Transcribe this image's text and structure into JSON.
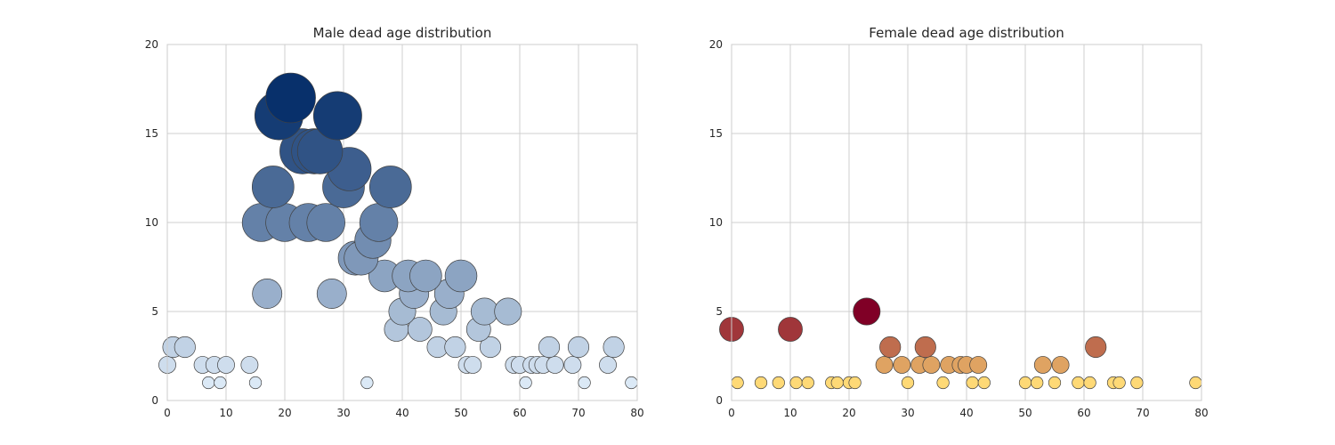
{
  "chart_data": [
    {
      "type": "scatter",
      "title": "Male dead age distribution",
      "xlabel": "",
      "ylabel": "",
      "xlim": [
        0,
        80
      ],
      "ylim": [
        0,
        20
      ],
      "xticks": [
        0,
        10,
        20,
        30,
        40,
        50,
        60,
        70,
        80
      ],
      "yticks": [
        0,
        5,
        10,
        15,
        20
      ],
      "grid": true,
      "colormap": "Blues",
      "color_low": "#dbe9f6",
      "color_high": "#08306b",
      "points": [
        [
          0,
          2
        ],
        [
          1,
          3
        ],
        [
          3,
          3
        ],
        [
          6,
          2
        ],
        [
          7,
          1
        ],
        [
          8,
          2
        ],
        [
          9,
          1
        ],
        [
          10,
          2
        ],
        [
          14,
          2
        ],
        [
          15,
          1
        ],
        [
          16,
          10
        ],
        [
          17,
          6
        ],
        [
          18,
          12
        ],
        [
          19,
          16
        ],
        [
          20,
          10
        ],
        [
          21,
          17
        ],
        [
          23,
          14
        ],
        [
          24,
          10
        ],
        [
          25,
          14
        ],
        [
          26,
          14
        ],
        [
          27,
          10
        ],
        [
          28,
          6
        ],
        [
          29,
          16
        ],
        [
          30,
          12
        ],
        [
          31,
          13
        ],
        [
          32,
          8
        ],
        [
          33,
          8
        ],
        [
          34,
          1
        ],
        [
          35,
          9
        ],
        [
          36,
          10
        ],
        [
          37,
          7
        ],
        [
          38,
          12
        ],
        [
          39,
          4
        ],
        [
          40,
          5
        ],
        [
          41,
          7
        ],
        [
          42,
          6
        ],
        [
          43,
          4
        ],
        [
          44,
          7
        ],
        [
          46,
          3
        ],
        [
          47,
          5
        ],
        [
          48,
          6
        ],
        [
          49,
          3
        ],
        [
          50,
          7
        ],
        [
          51,
          2
        ],
        [
          52,
          2
        ],
        [
          53,
          4
        ],
        [
          54,
          5
        ],
        [
          55,
          3
        ],
        [
          58,
          5
        ],
        [
          59,
          2
        ],
        [
          60,
          2
        ],
        [
          61,
          1
        ],
        [
          62,
          2
        ],
        [
          63,
          2
        ],
        [
          64,
          2
        ],
        [
          65,
          3
        ],
        [
          66,
          2
        ],
        [
          69,
          2
        ],
        [
          70,
          3
        ],
        [
          71,
          1
        ],
        [
          75,
          2
        ],
        [
          76,
          3
        ],
        [
          79,
          1
        ]
      ]
    },
    {
      "type": "scatter",
      "title": "Female dead age distribution",
      "xlabel": "",
      "ylabel": "",
      "xlim": [
        0,
        80
      ],
      "ylim": [
        0,
        20
      ],
      "xticks": [
        0,
        10,
        20,
        30,
        40,
        50,
        60,
        70,
        80
      ],
      "yticks": [
        0,
        5,
        10,
        15,
        20
      ],
      "grid": true,
      "colormap": "YlOrRd",
      "color_low": "#fed976",
      "color_high": "#800026",
      "points": [
        [
          0,
          4
        ],
        [
          1,
          1
        ],
        [
          5,
          1
        ],
        [
          8,
          1
        ],
        [
          10,
          4
        ],
        [
          11,
          1
        ],
        [
          13,
          1
        ],
        [
          17,
          1
        ],
        [
          18,
          1
        ],
        [
          20,
          1
        ],
        [
          21,
          1
        ],
        [
          23,
          5
        ],
        [
          26,
          2
        ],
        [
          27,
          3
        ],
        [
          29,
          2
        ],
        [
          30,
          1
        ],
        [
          32,
          2
        ],
        [
          33,
          3
        ],
        [
          34,
          2
        ],
        [
          36,
          1
        ],
        [
          37,
          2
        ],
        [
          39,
          2
        ],
        [
          40,
          2
        ],
        [
          41,
          1
        ],
        [
          42,
          2
        ],
        [
          43,
          1
        ],
        [
          50,
          1
        ],
        [
          52,
          1
        ],
        [
          53,
          2
        ],
        [
          55,
          1
        ],
        [
          56,
          2
        ],
        [
          59,
          1
        ],
        [
          61,
          1
        ],
        [
          62,
          3
        ],
        [
          65,
          1
        ],
        [
          66,
          1
        ],
        [
          69,
          1
        ],
        [
          79,
          1
        ]
      ]
    }
  ]
}
